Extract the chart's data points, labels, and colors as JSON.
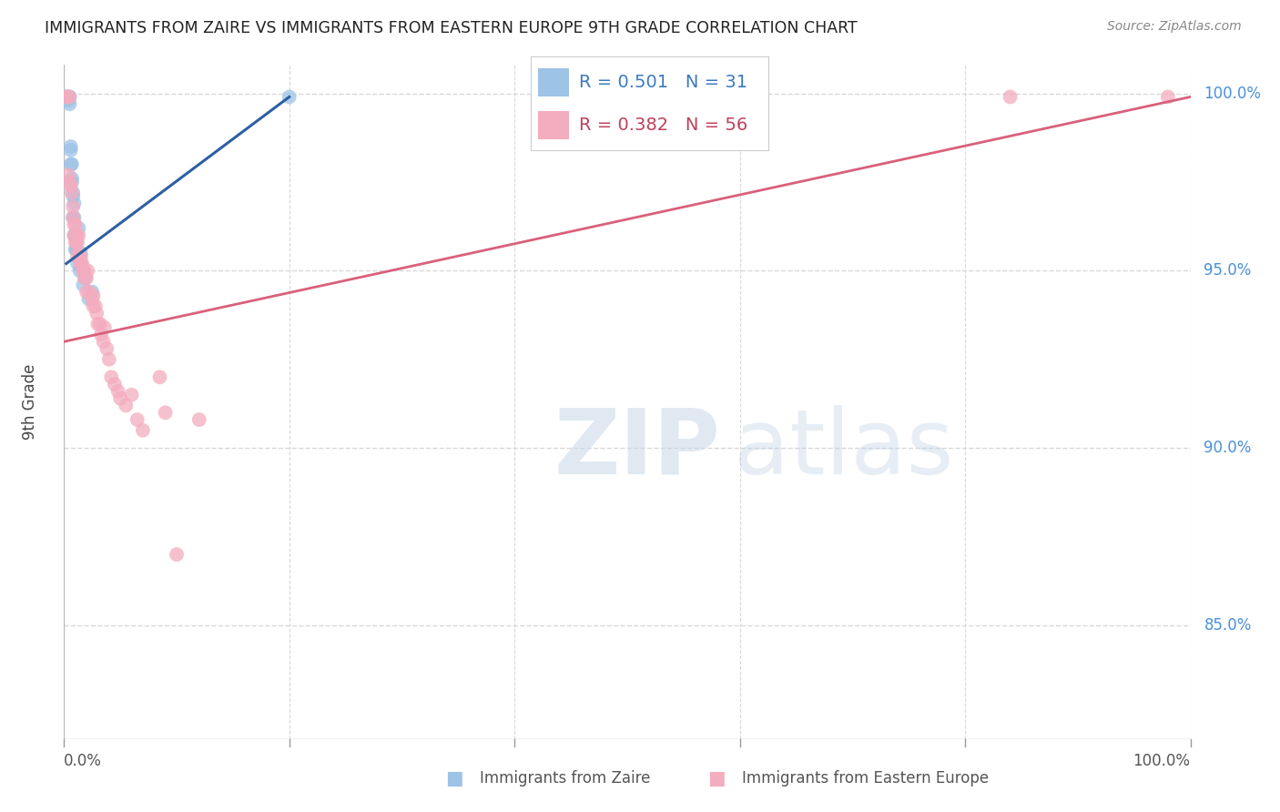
{
  "title": "IMMIGRANTS FROM ZAIRE VS IMMIGRANTS FROM EASTERN EUROPE 9TH GRADE CORRELATION CHART",
  "source": "Source: ZipAtlas.com",
  "ylabel": "9th Grade",
  "legend_blue": {
    "R": "0.501",
    "N": "31",
    "label": "Immigrants from Zaire"
  },
  "legend_pink": {
    "R": "0.382",
    "N": "56",
    "label": "Immigrants from Eastern Europe"
  },
  "ytick_labels": [
    "100.0%",
    "95.0%",
    "90.0%",
    "85.0%"
  ],
  "ytick_values": [
    1.0,
    0.95,
    0.9,
    0.85
  ],
  "xlim": [
    0.0,
    1.0
  ],
  "ylim": [
    0.818,
    1.008
  ],
  "blue_color": "#9dc3e6",
  "pink_color": "#f4acbf",
  "blue_line_color": "#2e5fa3",
  "pink_line_color": "#d9607a",
  "background_color": "#ffffff",
  "grid_color": "#d8d8d8",
  "blue_scatter_x": [
    0.002,
    0.004,
    0.004,
    0.005,
    0.005,
    0.006,
    0.006,
    0.006,
    0.007,
    0.007,
    0.007,
    0.008,
    0.008,
    0.008,
    0.009,
    0.009,
    0.009,
    0.01,
    0.01,
    0.011,
    0.011,
    0.012,
    0.013,
    0.014,
    0.015,
    0.016,
    0.017,
    0.019,
    0.022,
    0.025,
    0.2
  ],
  "blue_scatter_y": [
    0.999,
    0.999,
    0.998,
    0.999,
    0.997,
    0.985,
    0.984,
    0.98,
    0.98,
    0.976,
    0.975,
    0.972,
    0.971,
    0.965,
    0.969,
    0.965,
    0.96,
    0.96,
    0.956,
    0.96,
    0.956,
    0.952,
    0.962,
    0.95,
    0.955,
    0.951,
    0.946,
    0.948,
    0.942,
    0.944,
    0.999
  ],
  "pink_scatter_x": [
    0.002,
    0.003,
    0.004,
    0.005,
    0.005,
    0.006,
    0.007,
    0.008,
    0.008,
    0.009,
    0.009,
    0.01,
    0.01,
    0.011,
    0.011,
    0.012,
    0.012,
    0.013,
    0.013,
    0.014,
    0.015,
    0.015,
    0.016,
    0.017,
    0.018,
    0.018,
    0.02,
    0.02,
    0.021,
    0.022,
    0.025,
    0.026,
    0.026,
    0.028,
    0.029,
    0.03,
    0.032,
    0.033,
    0.035,
    0.036,
    0.038,
    0.04,
    0.042,
    0.045,
    0.048,
    0.05,
    0.055,
    0.06,
    0.065,
    0.07,
    0.085,
    0.09,
    0.1,
    0.12,
    0.84,
    0.98
  ],
  "pink_scatter_y": [
    0.999,
    0.999,
    0.977,
    0.975,
    0.999,
    0.974,
    0.972,
    0.968,
    0.965,
    0.963,
    0.96,
    0.963,
    0.958,
    0.96,
    0.958,
    0.958,
    0.954,
    0.96,
    0.955,
    0.953,
    0.954,
    0.952,
    0.952,
    0.95,
    0.95,
    0.948,
    0.948,
    0.944,
    0.95,
    0.944,
    0.942,
    0.943,
    0.94,
    0.94,
    0.938,
    0.935,
    0.935,
    0.932,
    0.93,
    0.934,
    0.928,
    0.925,
    0.92,
    0.918,
    0.916,
    0.914,
    0.912,
    0.915,
    0.908,
    0.905,
    0.92,
    0.91,
    0.87,
    0.908,
    0.999,
    0.999
  ],
  "blue_line_x": [
    0.002,
    0.2
  ],
  "blue_line_y": [
    0.952,
    0.999
  ],
  "pink_line_x": [
    0.0,
    1.0
  ],
  "pink_line_y": [
    0.93,
    0.999
  ]
}
